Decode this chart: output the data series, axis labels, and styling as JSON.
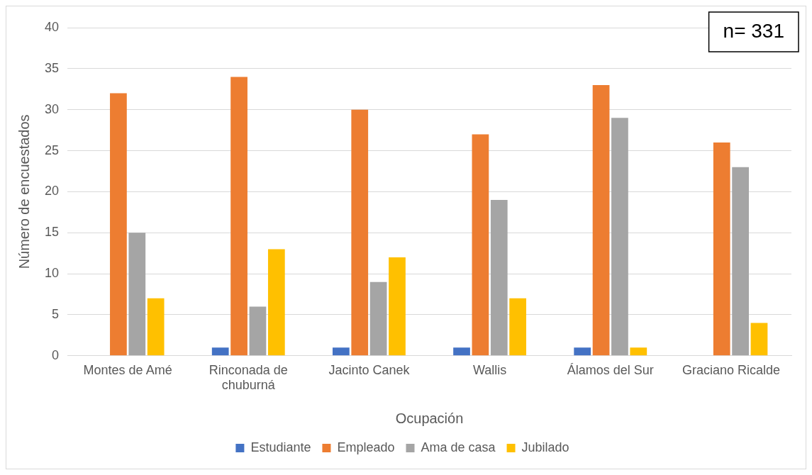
{
  "chart_data": {
    "type": "bar",
    "xlabel": "Ocupación",
    "ylabel": "Número de encuestados",
    "categories": [
      "Montes de Amé",
      "Rinconada de chuburná",
      "Jacinto Canek",
      "Wallis",
      "Álamos del Sur",
      "Graciano Ricalde"
    ],
    "series": [
      {
        "name": "Estudiante",
        "color": "#4472c4",
        "values": [
          0,
          1,
          1,
          1,
          1,
          0
        ]
      },
      {
        "name": "Empleado",
        "color": "#ed7d31",
        "values": [
          32,
          34,
          30,
          27,
          33,
          26
        ]
      },
      {
        "name": "Ama de casa",
        "color": "#a5a5a5",
        "values": [
          15,
          6,
          9,
          19,
          29,
          23
        ]
      },
      {
        "name": "Jubilado",
        "color": "#ffc000",
        "values": [
          7,
          13,
          12,
          7,
          1,
          4
        ]
      }
    ],
    "ylim": [
      0,
      40
    ],
    "yticks": [
      0,
      5,
      10,
      15,
      20,
      25,
      30,
      35,
      40
    ],
    "grid": "y",
    "legend": "bottom",
    "annotations": [
      "n= 331"
    ]
  }
}
